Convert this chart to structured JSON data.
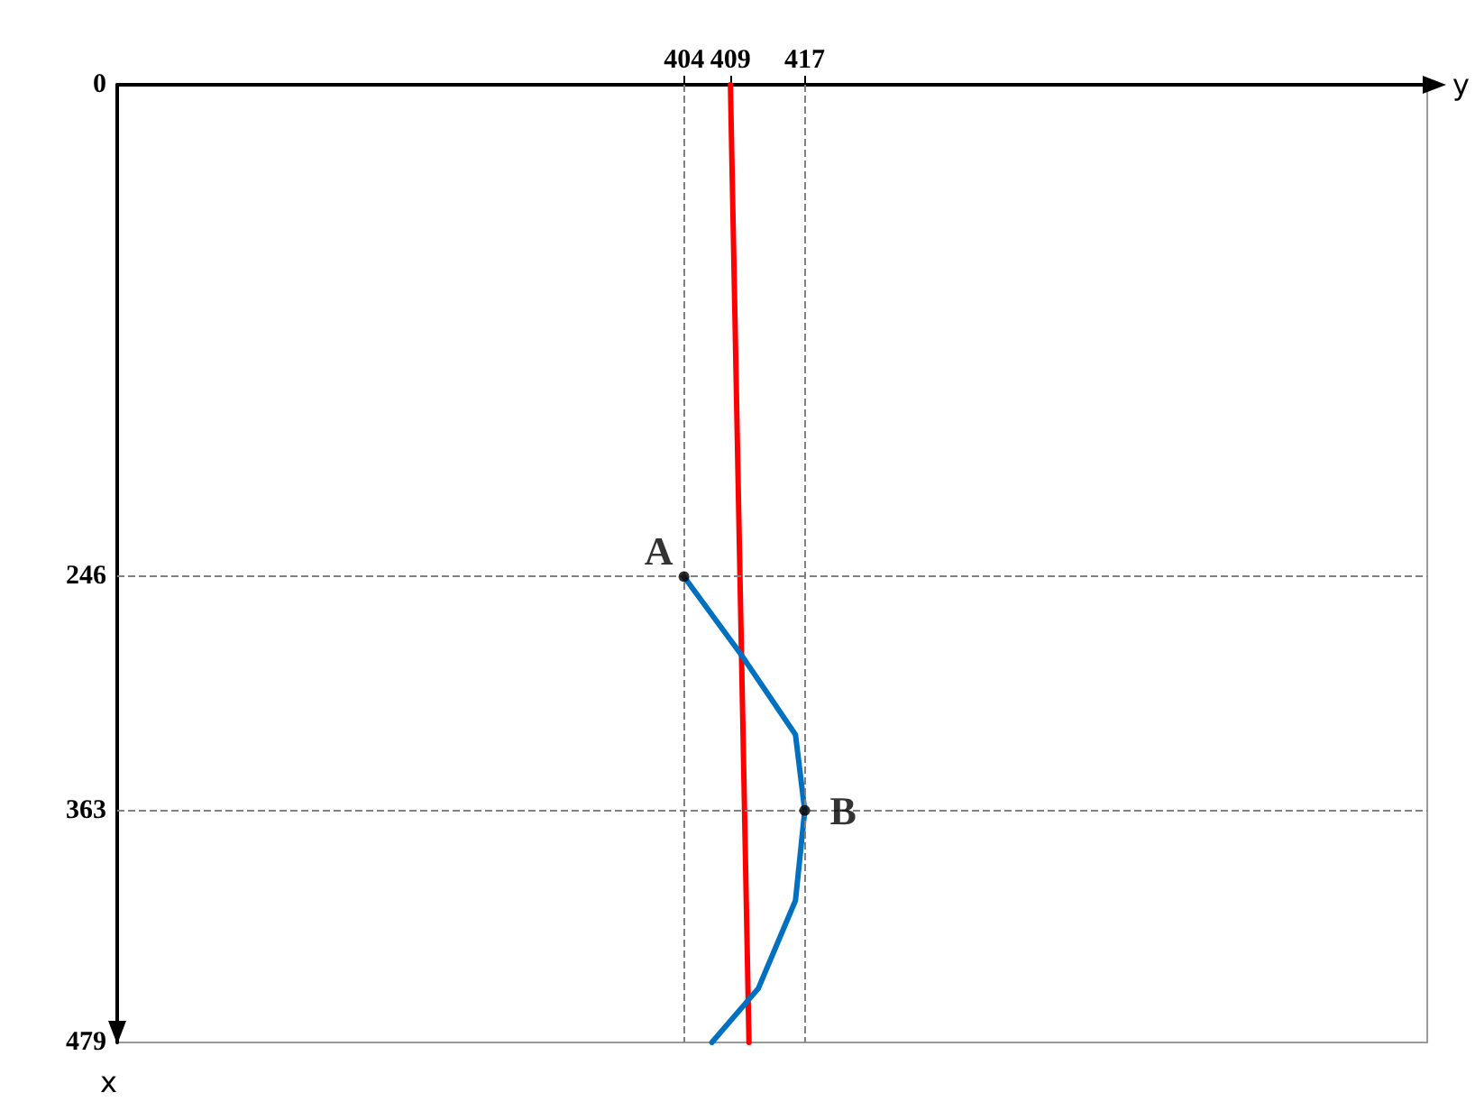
{
  "chart_data": {
    "type": "line",
    "xlabel": "y",
    "ylabel": "x",
    "xlim": [
      343,
      484
    ],
    "xticks": [
      404,
      409,
      417
    ],
    "ylim": [
      479,
      0
    ],
    "yticks": [
      0,
      246,
      363,
      479
    ],
    "grid": false,
    "series": [
      {
        "color": "#ff0000",
        "marker": "none",
        "line_style": "solid",
        "x": [
          409,
          411
        ],
        "values": [
          0,
          479
        ]
      },
      {
        "color": "#0070c0",
        "marker": "none",
        "line_style": "solid",
        "x": [
          404,
          410,
          416,
          417,
          416,
          412,
          407
        ],
        "values": [
          246,
          284,
          325,
          363,
          408,
          452,
          479
        ]
      },
      {
        "type": "scatter",
        "color": "#000000",
        "marker": "circle",
        "x": [
          404,
          417
        ],
        "values": [
          246,
          363
        ]
      }
    ],
    "ref_lines": [
      {
        "axis": "x",
        "value": 404,
        "color": "#808080",
        "line_style": "dashed"
      },
      {
        "axis": "x",
        "value": 417,
        "color": "#808080",
        "line_style": "dashed"
      },
      {
        "axis": "y",
        "value": 246,
        "color": "#808080",
        "line_style": "dashed"
      },
      {
        "axis": "y",
        "value": 363,
        "color": "#808080",
        "line_style": "dashed"
      }
    ],
    "annotations": [
      {
        "text": "A",
        "x": 404,
        "y": 246
      },
      {
        "text": "B",
        "x": 417,
        "y": 363
      }
    ]
  }
}
